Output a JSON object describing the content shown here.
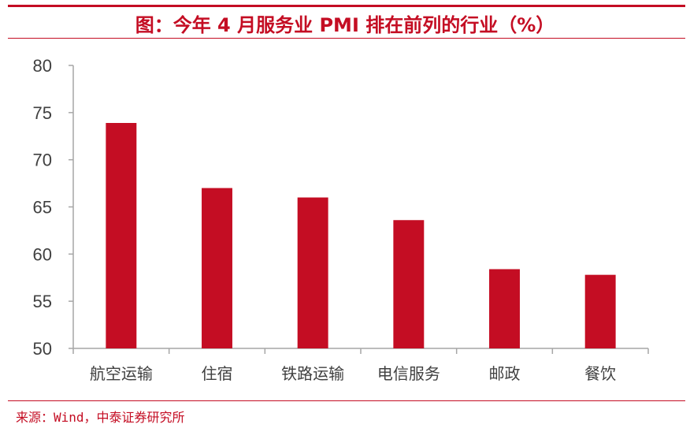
{
  "title": "图：今年 4 月服务业 PMI 排在前列的行业（%）",
  "source": "来源：Wind，中泰证券研究所",
  "colors": {
    "accent": "#c40d23",
    "axis": "#a6a6a6",
    "text": "#404040"
  },
  "chart_data": {
    "type": "bar",
    "categories": [
      "航空运输",
      "住宿",
      "铁路运输",
      "电信服务",
      "邮政",
      "餐饮"
    ],
    "values": [
      73.9,
      67.0,
      66.0,
      63.6,
      58.4,
      57.8
    ],
    "ylim": [
      50,
      80
    ],
    "yticks": [
      50,
      55,
      60,
      65,
      70,
      75,
      80
    ],
    "grid": false,
    "xlabel": "",
    "ylabel": ""
  }
}
